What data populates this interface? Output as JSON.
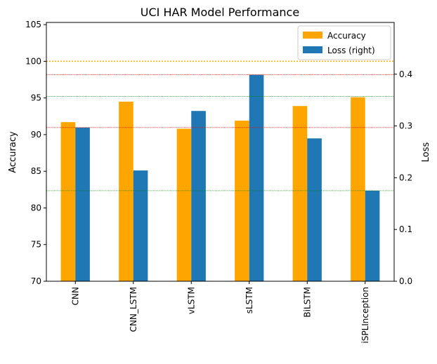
{
  "chart_data": {
    "type": "bar",
    "title": "UCI HAR Model Performance",
    "categories": [
      "CNN",
      "CNN_LSTM",
      "vLSTM",
      "sLSTM",
      "BiLSTM",
      "iSPLInception"
    ],
    "ylabel": "Accuracy",
    "y2label": "Loss",
    "ylim": [
      70,
      105.3
    ],
    "y2lim": [
      0,
      0.5
    ],
    "yticks": [
      "70",
      "75",
      "80",
      "85",
      "90",
      "95",
      "100",
      "105"
    ],
    "y2ticks": [
      "0.0",
      "0.1",
      "0.2",
      "0.3",
      "0.4"
    ],
    "series": [
      {
        "name": "Accuracy",
        "axis": "left",
        "color": "#ffa500",
        "values": [
          91.7,
          94.5,
          90.8,
          91.9,
          93.9,
          95.1
        ]
      },
      {
        "name": "Loss (right)",
        "axis": "right",
        "color": "#1f77b4",
        "values": [
          0.297,
          0.214,
          0.329,
          0.399,
          0.276,
          0.175
        ]
      }
    ],
    "reference_lines": [
      {
        "axis": "left",
        "value": 100.0,
        "color": "#ffa500",
        "style": "dotted"
      },
      {
        "axis": "right",
        "value": 0.399,
        "color": "#ff0000",
        "style": "dotted"
      },
      {
        "axis": "right",
        "value": 0.297,
        "color": "#ff0000",
        "style": "dotted"
      },
      {
        "axis": "right",
        "value": 0.357,
        "color": "#008000",
        "style": "dotted"
      },
      {
        "axis": "right",
        "value": 0.175,
        "color": "#008000",
        "style": "dotted"
      }
    ],
    "legend_position": "top-right",
    "grid": false
  }
}
